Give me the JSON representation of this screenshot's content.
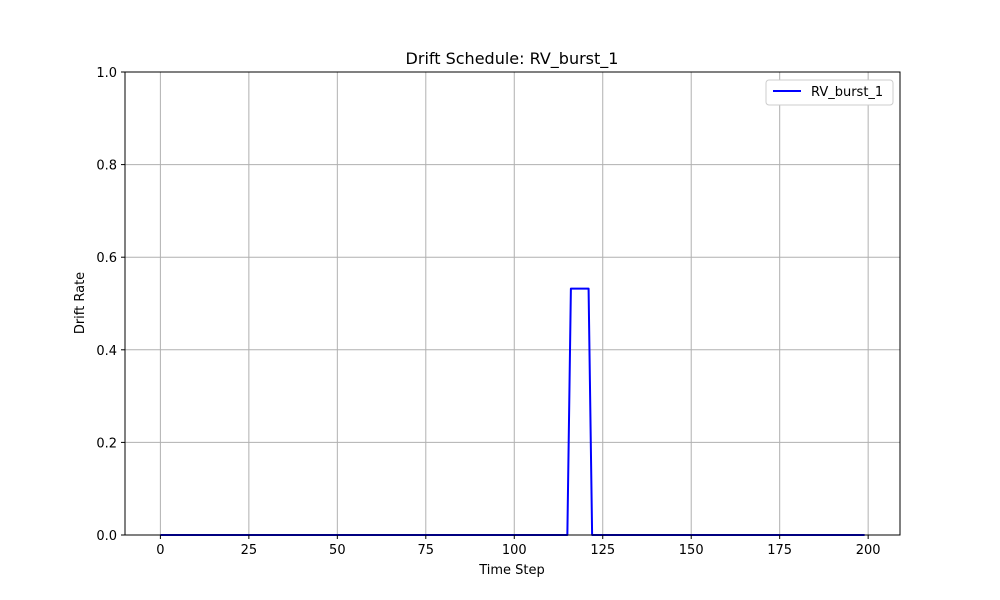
{
  "chart_data": {
    "type": "line",
    "title": "Drift Schedule: RV_burst_1",
    "xlabel": "Time Step",
    "ylabel": "Drift Rate",
    "xlim": [
      -10,
      209
    ],
    "ylim": [
      0,
      1
    ],
    "xticks": [
      0,
      25,
      50,
      75,
      100,
      125,
      150,
      175,
      200
    ],
    "yticks": [
      0.0,
      0.2,
      0.4,
      0.6,
      0.8,
      1.0
    ],
    "xtick_labels": [
      "0",
      "25",
      "50",
      "75",
      "100",
      "125",
      "150",
      "175",
      "200"
    ],
    "ytick_labels": [
      "0.0",
      "0.2",
      "0.4",
      "0.6",
      "0.8",
      "1.0"
    ],
    "grid": true,
    "legend_position": "top-right",
    "series": [
      {
        "name": "RV_burst_1",
        "color": "#0000ff",
        "x": [
          0,
          115,
          116,
          121,
          122,
          199
        ],
        "y": [
          0,
          0,
          0.532,
          0.532,
          0,
          0
        ]
      }
    ]
  }
}
